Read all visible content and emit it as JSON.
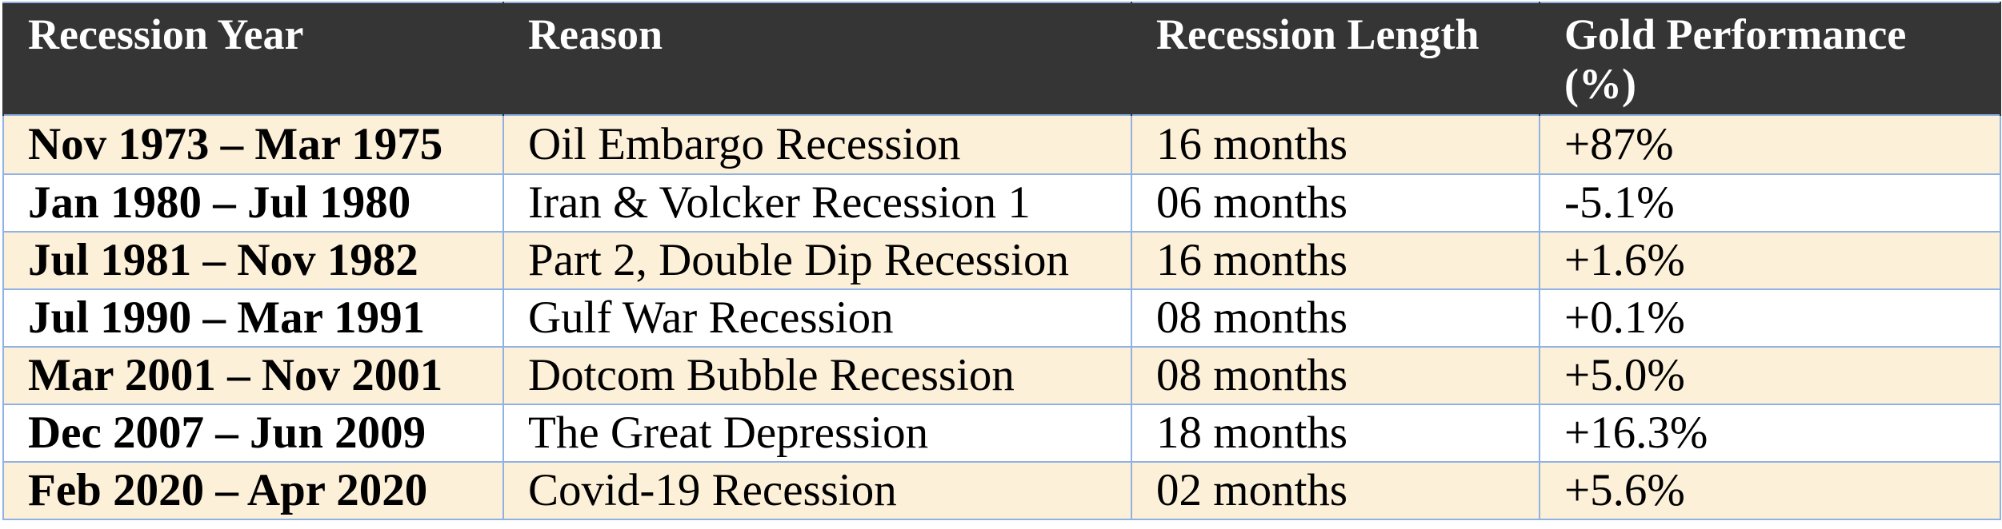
{
  "table": {
    "headers": [
      "Recession Year",
      "Reason",
      "Recession Length",
      "Gold Performance (%)"
    ],
    "rows": [
      [
        "Nov 1973 – Mar 1975",
        "Oil Embargo Recession",
        "16 months",
        "+87%"
      ],
      [
        "Jan 1980 – Jul 1980",
        "Iran & Volcker Recession 1",
        "06 months",
        "-5.1%"
      ],
      [
        "Jul 1981 – Nov 1982",
        "Part 2, Double Dip Recession",
        "16 months",
        "+1.6%"
      ],
      [
        "Jul 1990 – Mar 1991",
        "Gulf War Recession",
        "08 months",
        "+0.1%"
      ],
      [
        "Mar 2001 – Nov 2001",
        "Dotcom Bubble Recession",
        "08 months",
        "+5.0%"
      ],
      [
        "Dec 2007 – Jun 2009",
        "The Great Depression",
        "18 months",
        "+16.3%"
      ],
      [
        "Feb 2020 – Apr 2020",
        "Covid-19 Recession",
        "02 months",
        "+5.6%"
      ]
    ]
  },
  "colors": {
    "header_background": "#353535",
    "header_text": "#ffffff",
    "odd_row_background": "#fdf0d8",
    "even_row_background": "#ffffff",
    "grid_line": "#8fb2e3"
  }
}
